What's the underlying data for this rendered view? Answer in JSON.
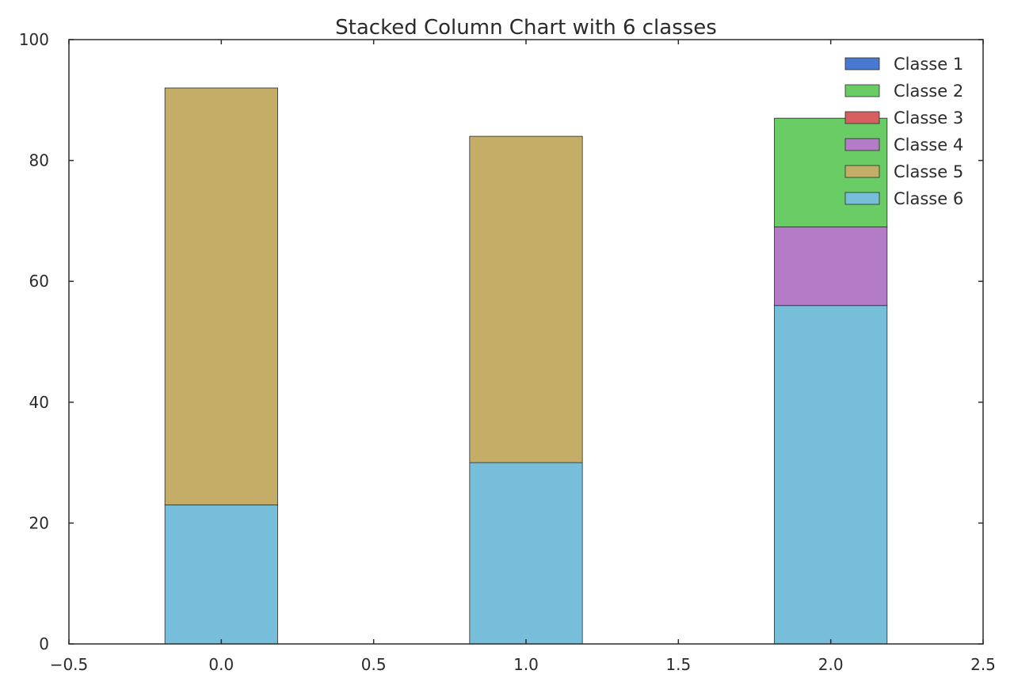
{
  "chart_data": {
    "type": "bar",
    "stacked": true,
    "title": "Stacked Column Chart with 6 classes",
    "xlabel": "",
    "ylabel": "",
    "x": [
      0,
      1,
      2
    ],
    "bar_width": 0.37,
    "xlim": [
      -0.5,
      2.5
    ],
    "ylim": [
      0,
      100
    ],
    "x_ticks": [
      -0.5,
      0.0,
      0.5,
      1.0,
      1.5,
      2.0,
      2.5
    ],
    "x_tick_labels": [
      "−0.5",
      "0.0",
      "0.5",
      "1.0",
      "1.5",
      "2.0",
      "2.5"
    ],
    "y_ticks": [
      0,
      20,
      40,
      60,
      80,
      100
    ],
    "y_tick_labels": [
      "0",
      "20",
      "40",
      "60",
      "80",
      "100"
    ],
    "grid": false,
    "legend_position": "top-right",
    "series": [
      {
        "name": "Classe 1",
        "color": "#4878cf",
        "values": [
          0,
          0,
          0
        ]
      },
      {
        "name": "Classe 2",
        "color": "#6acc65",
        "values": [
          0,
          0,
          18
        ]
      },
      {
        "name": "Classe 3",
        "color": "#d65f5f",
        "values": [
          0,
          0,
          0
        ]
      },
      {
        "name": "Classe 4",
        "color": "#b47cc7",
        "values": [
          0,
          0,
          13
        ]
      },
      {
        "name": "Classe 5",
        "color": "#c4ad66",
        "values": [
          69,
          54,
          0
        ]
      },
      {
        "name": "Classe 6",
        "color": "#77bedb",
        "values": [
          23,
          30,
          56
        ]
      }
    ]
  }
}
